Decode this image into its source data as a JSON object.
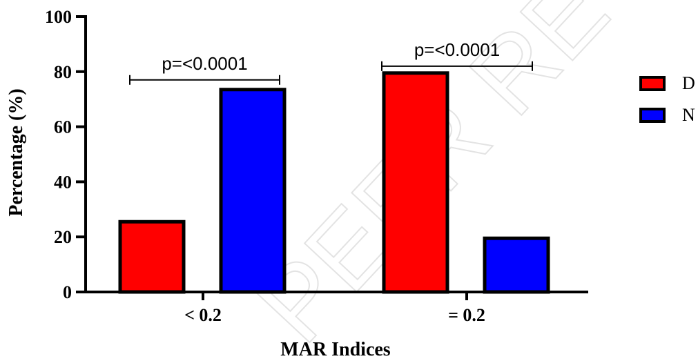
{
  "chart_data": {
    "type": "bar",
    "categories": [
      "< 0.2",
      "= 0.2"
    ],
    "series": [
      {
        "name": "D",
        "values": [
          25.5,
          79.5
        ],
        "color": "#ff0000"
      },
      {
        "name": "N",
        "values": [
          73.5,
          19.5
        ],
        "color": "#0000ff"
      }
    ],
    "xlabel": "MAR Indices",
    "ylabel": "Percentage (%)",
    "ylim": [
      0,
      100
    ],
    "yticks": [
      "0",
      "20",
      "40",
      "60",
      "80",
      "100"
    ],
    "annotations": [
      {
        "text": "p=<0.0001",
        "category": "< 0.2",
        "bracket_y": 77
      },
      {
        "text": "p=<0.0001",
        "category": "= 0.2",
        "bracket_y": 82
      }
    ],
    "legend_position": "right",
    "grid": false
  },
  "watermark": "PEER REVIEW"
}
